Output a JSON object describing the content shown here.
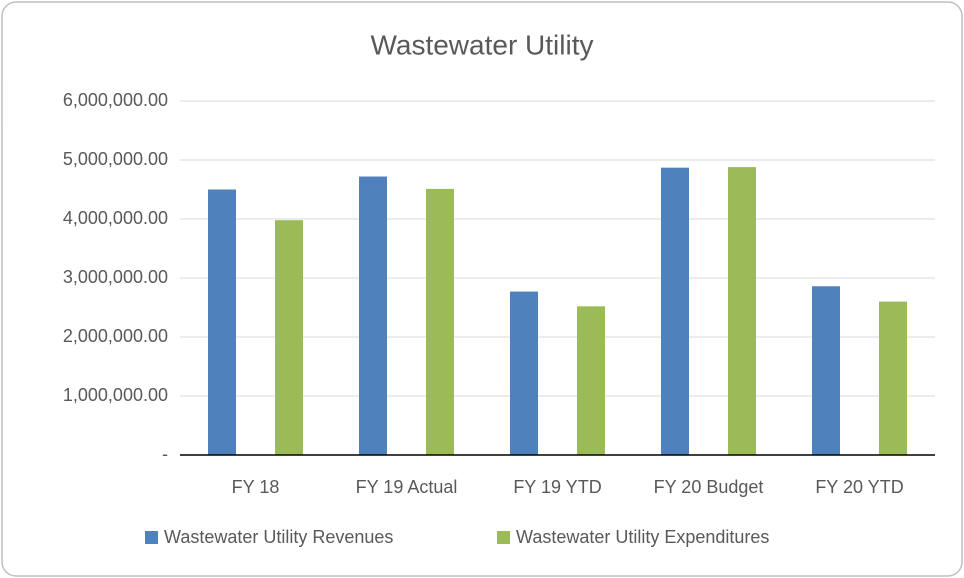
{
  "chart_data": {
    "type": "bar",
    "title": "Wastewater Utility",
    "categories": [
      "FY 18",
      "FY 19 Actual",
      "FY 19 YTD",
      "FY 20 Budget",
      "FY 20 YTD"
    ],
    "series": [
      {
        "name": "Wastewater Utility Revenues",
        "color": "#4f81bd",
        "values": [
          4500000,
          4720000,
          2770000,
          4870000,
          2860000
        ]
      },
      {
        "name": "Wastewater Utility Expenditures",
        "color": "#9bbb59",
        "values": [
          3980000,
          4510000,
          2520000,
          4880000,
          2600000
        ]
      }
    ],
    "ylim": [
      0,
      6000000
    ],
    "yticks": [
      {
        "value": 0,
        "label": "-"
      },
      {
        "value": 1000000,
        "label": "1,000,000.00"
      },
      {
        "value": 2000000,
        "label": "2,000,000.00"
      },
      {
        "value": 3000000,
        "label": "3,000,000.00"
      },
      {
        "value": 4000000,
        "label": "4,000,000.00"
      },
      {
        "value": 5000000,
        "label": "5,000,000.00"
      },
      {
        "value": 6000000,
        "label": "6,000,000.00"
      }
    ],
    "grid": true,
    "legend": "bottom"
  }
}
